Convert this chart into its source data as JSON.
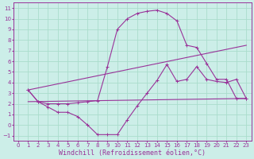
{
  "bg_color": "#cceee8",
  "grid_color": "#aaddcc",
  "line_color": "#993399",
  "xlabel": "Windchill (Refroidissement éolien,°C)",
  "xlim": [
    -0.5,
    23.5
  ],
  "ylim": [
    -1.5,
    11.5
  ],
  "xticks": [
    0,
    1,
    2,
    3,
    4,
    5,
    6,
    7,
    8,
    9,
    10,
    11,
    12,
    13,
    14,
    15,
    16,
    17,
    18,
    19,
    20,
    21,
    22,
    23
  ],
  "yticks": [
    -1,
    0,
    1,
    2,
    3,
    4,
    5,
    6,
    7,
    8,
    9,
    10,
    11
  ],
  "curve_bell_x": [
    1,
    2,
    3,
    4,
    5,
    6,
    7,
    8,
    9,
    10,
    11,
    12,
    13,
    14,
    15,
    16,
    17,
    18,
    19,
    20,
    21,
    22,
    23
  ],
  "curve_bell_y": [
    3.3,
    2.2,
    2.0,
    2.0,
    2.0,
    2.1,
    2.2,
    2.3,
    5.5,
    9.0,
    10.0,
    10.5,
    10.7,
    10.8,
    10.5,
    9.8,
    7.5,
    7.3,
    5.8,
    4.3,
    4.3,
    2.5,
    2.5
  ],
  "curve_wavy_x": [
    1,
    2,
    3,
    4,
    5,
    6,
    7,
    8,
    9,
    10,
    11,
    12,
    13,
    14,
    15,
    16,
    17,
    18,
    19,
    20,
    21,
    22,
    23
  ],
  "curve_wavy_y": [
    3.3,
    2.2,
    1.7,
    1.2,
    1.2,
    0.8,
    0.0,
    -0.9,
    -0.9,
    -0.9,
    0.5,
    1.8,
    3.0,
    4.2,
    5.7,
    4.1,
    4.3,
    5.5,
    4.3,
    4.1,
    4.0,
    4.3,
    2.5
  ],
  "line1_x": [
    1,
    23
  ],
  "line1_y": [
    2.2,
    2.5
  ],
  "line2_x": [
    1,
    23
  ],
  "line2_y": [
    3.3,
    7.5
  ],
  "tick_fontsize": 5.0,
  "xlabel_fontsize": 6.0
}
